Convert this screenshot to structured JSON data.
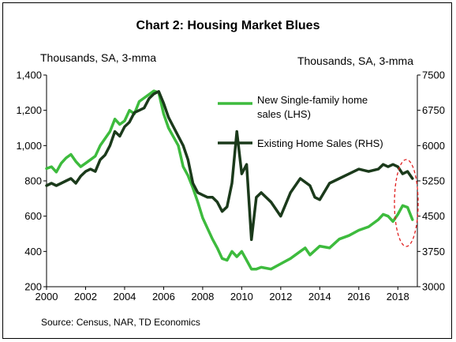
{
  "chart_data": {
    "type": "line",
    "title": "Chart 2: Housing Market Blues",
    "left_axis_unit": "Thousands, SA, 3-mma",
    "right_axis_unit": "Thousands, SA, 3-mma",
    "source": "Source: Census, NAR, TD Economics",
    "x_ticks": [
      "2000",
      "2002",
      "2004",
      "2006",
      "2008",
      "2010",
      "2012",
      "2014",
      "2016",
      "2018"
    ],
    "x_range": [
      2000,
      2019.0
    ],
    "y_left_ticks": [
      "200",
      "400",
      "600",
      "800",
      "1,000",
      "1,200",
      "1,400"
    ],
    "y_left_range": [
      200,
      1400
    ],
    "y_right_ticks": [
      "3000",
      "3750",
      "4500",
      "5250",
      "6000",
      "6750",
      "7500"
    ],
    "y_right_range": [
      3000,
      7500
    ],
    "grid": false,
    "legend_position": "top-right",
    "series": [
      {
        "name": "New Single-family home sales (LHS)",
        "axis": "left",
        "color": "#3dbb3d",
        "x": [
          2000.0,
          2000.25,
          2000.5,
          2000.75,
          2001.0,
          2001.25,
          2001.5,
          2001.75,
          2002.0,
          2002.25,
          2002.5,
          2002.75,
          2003.0,
          2003.25,
          2003.5,
          2003.75,
          2004.0,
          2004.25,
          2004.5,
          2004.75,
          2005.0,
          2005.25,
          2005.5,
          2005.75,
          2006.0,
          2006.25,
          2006.5,
          2006.75,
          2007.0,
          2007.25,
          2007.5,
          2007.75,
          2008.0,
          2008.25,
          2008.5,
          2008.75,
          2009.0,
          2009.25,
          2009.5,
          2009.75,
          2010.0,
          2010.25,
          2010.5,
          2010.75,
          2011.0,
          2011.5,
          2012.0,
          2012.5,
          2013.0,
          2013.25,
          2013.5,
          2014.0,
          2014.5,
          2015.0,
          2015.5,
          2016.0,
          2016.5,
          2017.0,
          2017.25,
          2017.5,
          2017.75,
          2018.0,
          2018.25,
          2018.5,
          2018.75
        ],
        "values": [
          870,
          880,
          850,
          900,
          930,
          950,
          910,
          880,
          900,
          920,
          940,
          1000,
          1040,
          1080,
          1150,
          1120,
          1140,
          1200,
          1180,
          1250,
          1270,
          1290,
          1310,
          1300,
          1180,
          1100,
          1050,
          1000,
          880,
          830,
          760,
          680,
          590,
          530,
          470,
          420,
          360,
          350,
          400,
          370,
          400,
          350,
          300,
          300,
          310,
          300,
          330,
          360,
          400,
          420,
          380,
          430,
          420,
          470,
          490,
          520,
          540,
          580,
          610,
          600,
          570,
          610,
          660,
          650,
          580
        ]
      },
      {
        "name": "Existing Home Sales (RHS)",
        "axis": "right",
        "color": "#1b3a1b",
        "x": [
          2000.0,
          2000.25,
          2000.5,
          2000.75,
          2001.0,
          2001.25,
          2001.5,
          2001.75,
          2002.0,
          2002.25,
          2002.5,
          2002.75,
          2003.0,
          2003.25,
          2003.5,
          2003.75,
          2004.0,
          2004.25,
          2004.5,
          2004.75,
          2005.0,
          2005.25,
          2005.5,
          2005.75,
          2006.0,
          2006.25,
          2006.5,
          2006.75,
          2007.0,
          2007.25,
          2007.5,
          2007.75,
          2008.0,
          2008.25,
          2008.5,
          2008.75,
          2009.0,
          2009.25,
          2009.5,
          2009.75,
          2010.0,
          2010.25,
          2010.5,
          2010.75,
          2011.0,
          2011.5,
          2012.0,
          2012.5,
          2013.0,
          2013.5,
          2013.75,
          2014.0,
          2014.5,
          2015.0,
          2015.5,
          2016.0,
          2016.5,
          2017.0,
          2017.25,
          2017.5,
          2017.75,
          2018.0,
          2018.25,
          2018.5,
          2018.75
        ],
        "values": [
          5150,
          5200,
          5150,
          5200,
          5250,
          5300,
          5200,
          5350,
          5450,
          5500,
          5450,
          5700,
          5800,
          6000,
          6300,
          6200,
          6400,
          6500,
          6700,
          6750,
          6800,
          7000,
          7100,
          7150,
          6900,
          6600,
          6400,
          6200,
          6000,
          5700,
          5200,
          5000,
          4950,
          4900,
          4900,
          4800,
          4600,
          4700,
          5200,
          6300,
          5400,
          5600,
          4000,
          4900,
          5000,
          4800,
          4500,
          5000,
          5300,
          5150,
          4900,
          4850,
          5200,
          5300,
          5400,
          5500,
          5450,
          5500,
          5600,
          5550,
          5600,
          5550,
          5400,
          5450,
          5300
        ]
      }
    ],
    "annotation": "ellipse-highlight-2018"
  }
}
